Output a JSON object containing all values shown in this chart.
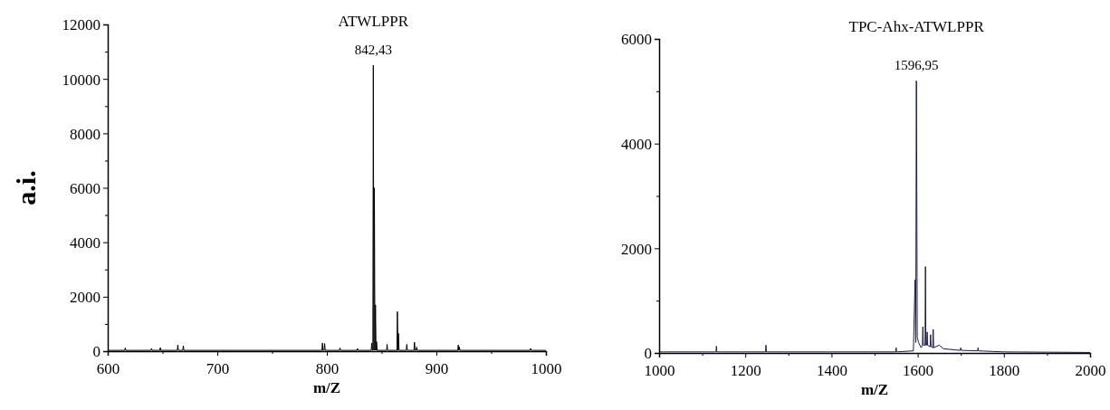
{
  "chart_data": [
    {
      "type": "line",
      "title": "ATWLPPR",
      "xlabel": "m/Z",
      "ylabel": "a.i.",
      "annotations": [
        {
          "text": "842,43",
          "x": 842.43,
          "y": 10500
        }
      ],
      "xlim": [
        600,
        1000
      ],
      "ylim": [
        0,
        12000
      ],
      "xticks": [
        600,
        {
          "value": 650,
          "label": null
        },
        700,
        {
          "value": 750,
          "label": null
        },
        800,
        {
          "value": 850,
          "label": null
        },
        900,
        {
          "value": 950,
          "label": null
        },
        1000
      ],
      "yticks": [
        0,
        {
          "value": 1000,
          "label": null
        },
        2000,
        {
          "value": 3000,
          "label": null
        },
        4000,
        {
          "value": 5000,
          "label": null
        },
        6000,
        {
          "value": 7000,
          "label": null
        },
        8000,
        {
          "value": 9000,
          "label": null
        },
        10000,
        {
          "value": 11000,
          "label": null
        },
        12000
      ],
      "x": [
        600,
        615.5,
        616,
        616.5,
        639.5,
        640,
        640.5,
        647.5,
        648,
        648.5,
        663.5,
        664,
        664.5,
        668.5,
        669,
        669.5,
        795.5,
        796,
        796.5,
        797.5,
        798,
        798.5,
        811.5,
        812,
        812.5,
        827.5,
        828,
        828.5,
        840.5,
        841,
        841.5,
        842,
        842.43,
        842.9,
        843.4,
        843.9,
        844.4,
        844.9,
        845.4,
        845.9,
        854.5,
        855,
        855.5,
        864,
        864.4,
        864.9,
        865.4,
        865.9,
        872.5,
        873,
        873.5,
        879.5,
        880,
        880.5,
        881.5,
        882,
        882.5,
        919.5,
        920,
        920.5,
        921,
        921.5,
        985.5,
        986,
        986.5,
        1000
      ],
      "series": [
        {
          "color": "#000000",
          "line_style": "solid",
          "values": [
            30,
            30,
            120,
            30,
            30,
            100,
            30,
            30,
            130,
            30,
            30,
            230,
            30,
            30,
            200,
            30,
            30,
            300,
            30,
            30,
            280,
            30,
            30,
            120,
            30,
            30,
            100,
            30,
            30,
            300,
            30,
            30,
            10500,
            30,
            6000,
            30,
            1700,
            30,
            350,
            30,
            30,
            250,
            30,
            30,
            1450,
            30,
            650,
            30,
            30,
            250,
            30,
            30,
            330,
            30,
            30,
            150,
            30,
            30,
            230,
            30,
            150,
            30,
            30,
            100,
            30,
            30
          ]
        }
      ]
    },
    {
      "type": "line",
      "title": "TPC-Ahx-ATWLPPR",
      "xlabel": "m/Z",
      "annotations": [
        {
          "text": "1596,95",
          "x": 1596.95,
          "y": 5200
        }
      ],
      "xlim": [
        1000,
        2000
      ],
      "ylim": [
        0,
        6000
      ],
      "xticks": [
        1000,
        {
          "value": 1100,
          "label": null
        },
        1200,
        {
          "value": 1300,
          "label": null
        },
        1400,
        {
          "value": 1500,
          "label": null
        },
        1600,
        {
          "value": 1700,
          "label": null
        },
        1800,
        {
          "value": 1900,
          "label": null
        },
        2000
      ],
      "yticks": [
        0,
        {
          "value": 1000,
          "label": null
        },
        2000,
        {
          "value": 3000,
          "label": null
        },
        4000,
        {
          "value": 5000,
          "label": null
        },
        6000
      ],
      "x": [
        1000,
        1132,
        1133,
        1134,
        1247,
        1248,
        1249,
        1549,
        1550,
        1551,
        1590,
        1594,
        1595.5,
        1596.95,
        1598,
        1599,
        1602,
        1608,
        1611,
        1612,
        1613,
        1617,
        1618,
        1619,
        1621,
        1622,
        1623,
        1629,
        1630,
        1631,
        1635,
        1636,
        1637,
        1650,
        1660,
        1699,
        1700,
        1701,
        1739,
        1740,
        1741,
        1800,
        2000
      ],
      "series": [
        {
          "color": "#1a1a50",
          "line_style": "solid",
          "values": [
            20,
            20,
            130,
            20,
            20,
            150,
            20,
            20,
            100,
            20,
            40,
            1400,
            200,
            5200,
            3100,
            300,
            200,
            100,
            150,
            500,
            150,
            150,
            1650,
            150,
            150,
            400,
            150,
            120,
            350,
            120,
            100,
            450,
            100,
            150,
            80,
            50,
            100,
            50,
            40,
            100,
            40,
            20,
            10
          ]
        }
      ]
    }
  ]
}
